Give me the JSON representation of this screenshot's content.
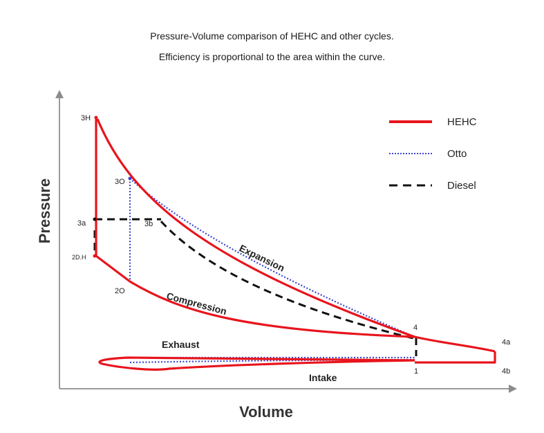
{
  "title": {
    "line1": "Pressure-Volume comparison of HEHC and other cycles.",
    "line2": "Efficiency is proportional to the area within the curve."
  },
  "axes": {
    "y_label": "Pressure",
    "x_label": "Volume"
  },
  "legend": [
    {
      "label": "HEHC",
      "color": "#e8141c",
      "style": "solid"
    },
    {
      "label": "Otto",
      "color": "#3b44c9",
      "style": "dotted"
    },
    {
      "label": "Diesel",
      "color": "#111111",
      "style": "dashed"
    }
  ],
  "point_labels": {
    "p3h": "3H",
    "p3o": "3O",
    "p3a": "3a",
    "p3b": "3b",
    "p2dh": "2D.H",
    "p2o": "2O",
    "p4": "4",
    "p4a": "4a",
    "p4b": "4b",
    "p1": "1"
  },
  "curve_labels": {
    "expansion": "Expansion",
    "compression": "Compression",
    "exhaust": "Exhaust",
    "intake": "Intake"
  },
  "colors": {
    "hehc": "#e8141c",
    "otto": "#3b44c9",
    "diesel": "#111111",
    "axis": "#8c8c8c"
  }
}
